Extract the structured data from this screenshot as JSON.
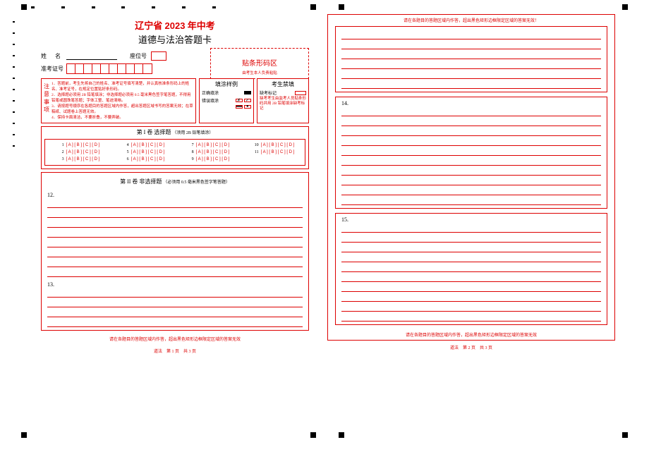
{
  "title": {
    "province": "辽宁省",
    "year": "2023",
    "exam": "年中考",
    "subject_line": "道德与法治答题卡"
  },
  "fields": {
    "name_label": "姓　名",
    "seat_label": "座位号",
    "id_label": "准考证号",
    "id_cell_count": 10
  },
  "barcode": {
    "label": "贴条形码区",
    "sub": "由考生本人负责粘贴"
  },
  "notice": {
    "header": "注意事项",
    "items": [
      "1．答题前，考生先将自己的姓名、准考证号填写清楚，并认真核准条形码上的姓名、准考证号，在规定位置贴好条形码。",
      "2．选择题必须用 2B 铅笔填涂；非选择题必须用 0.5 毫米黑色签字笔答题，不得用铅笔或圆珠笔答题；字体工整、笔迹清晰。",
      "3．请按题号顺序在各题目的答题区域内作答，超出答题区域书写的答案无效；在草稿纸、试题卷上答题无效。",
      "4．保持卡面清洁，不要折叠，不要弄破。"
    ]
  },
  "fill_example": {
    "header": "填涂样例",
    "correct_label": "正确填涂",
    "wrong_label": "错误填涂"
  },
  "forbid": {
    "header": "考生禁填",
    "absent_label": "缺考标记",
    "text": "缺考考生由监考人员贴条形码并用 2B 铅笔填涂缺考标记"
  },
  "section1": {
    "title": "第 I 卷  选择题",
    "subtitle": "（须用 2B 铅笔填涂）",
    "option_str": "[ A ] [ B ] [ C ] [ D ]",
    "columns": [
      [
        "1",
        "2",
        "3"
      ],
      [
        "4",
        "5",
        "6"
      ],
      [
        "7",
        "8",
        "9"
      ],
      [
        "10",
        "11"
      ]
    ]
  },
  "section2": {
    "title": "第 II 卷  非选择题",
    "subtitle": "（必须用 0.5 毫米黑色签字笔答题）",
    "q12": "12.",
    "q12_lines": 8,
    "q13": "13.",
    "q13_lines": 4
  },
  "page2": {
    "top_warning": "请在各题目的答题区域内作答，超出黑色矩形边框限定区域的答案无效！",
    "box1_lines": 6,
    "q14": "14.",
    "q14_lines": 10,
    "q15": "15.",
    "q15_lines": 10
  },
  "footer_warning": "请在各题目的答题区域内作答，超出黑色矩形边框限定区域的答案无效",
  "page1_footer": "道法　第 1 页　共 3 页",
  "page2_footer": "道法　第 2 页　共 3 页"
}
